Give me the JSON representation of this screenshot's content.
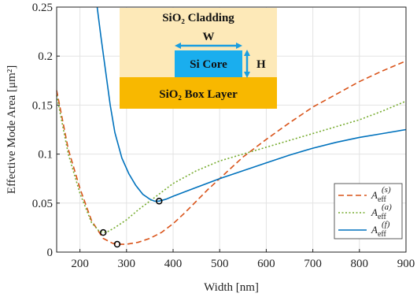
{
  "chart_data": {
    "type": "line",
    "xlabel": "Width [nm]",
    "ylabel": "Effective Mode Area [μm²]",
    "xlim": [
      150,
      900
    ],
    "ylim": [
      0,
      0.25
    ],
    "xticks": [
      "200",
      "300",
      "400",
      "500",
      "600",
      "700",
      "800",
      "900"
    ],
    "yticks": [
      "0",
      "0.05",
      "0.1",
      "0.15",
      "0.2",
      "0.25"
    ],
    "grid": true,
    "legend_position": "bottom-right",
    "series": [
      {
        "name": "A_eff^(s)",
        "legend_main": "A",
        "legend_sub": "eff",
        "legend_sup": "(s)",
        "color": "#d95319",
        "style": "dashed",
        "x": [
          150,
          175,
          200,
          225,
          250,
          270,
          280,
          300,
          325,
          350,
          375,
          400,
          425,
          450,
          475,
          500,
          550,
          600,
          650,
          700,
          750,
          800,
          850,
          900
        ],
        "y": [
          0.165,
          0.105,
          0.065,
          0.032,
          0.014,
          0.009,
          0.008,
          0.008,
          0.01,
          0.014,
          0.02,
          0.029,
          0.04,
          0.052,
          0.064,
          0.075,
          0.097,
          0.115,
          0.132,
          0.148,
          0.161,
          0.174,
          0.185,
          0.195
        ]
      },
      {
        "name": "A_eff^(a)",
        "legend_main": "A",
        "legend_sub": "eff",
        "legend_sup": "(a)",
        "color": "#77ac30",
        "style": "dotted",
        "x": [
          150,
          175,
          200,
          225,
          240,
          250,
          260,
          275,
          300,
          325,
          350,
          375,
          400,
          450,
          500,
          550,
          600,
          650,
          700,
          750,
          800,
          850,
          900
        ],
        "y": [
          0.16,
          0.1,
          0.06,
          0.03,
          0.022,
          0.02,
          0.021,
          0.025,
          0.033,
          0.043,
          0.052,
          0.061,
          0.07,
          0.083,
          0.093,
          0.1,
          0.107,
          0.114,
          0.121,
          0.128,
          0.135,
          0.144,
          0.154
        ]
      },
      {
        "name": "A_eff^(f)",
        "legend_main": "A",
        "legend_sub": "eff",
        "legend_sup": "(f)",
        "color": "#0072bd",
        "style": "solid",
        "x": [
          237,
          245,
          255,
          265,
          275,
          290,
          305,
          320,
          335,
          350,
          360,
          370,
          385,
          400,
          450,
          500,
          550,
          600,
          650,
          700,
          750,
          800,
          850,
          900
        ],
        "y": [
          0.25,
          0.22,
          0.185,
          0.15,
          0.122,
          0.096,
          0.08,
          0.068,
          0.059,
          0.054,
          0.052,
          0.052,
          0.054,
          0.057,
          0.066,
          0.075,
          0.083,
          0.091,
          0.099,
          0.106,
          0.112,
          0.117,
          0.121,
          0.125
        ]
      }
    ],
    "markers": [
      {
        "x": 250,
        "y": 0.02
      },
      {
        "x": 280,
        "y": 0.008
      },
      {
        "x": 370,
        "y": 0.052
      }
    ],
    "inset": {
      "cladding_label": "SiO₂ Cladding",
      "core_label": "Si Core",
      "box_label": "SiO₂ Box Layer",
      "width_label": "W",
      "height_label": "H",
      "cladding_color": "#fde9b8",
      "box_color": "#f8b800",
      "core_color": "#1aaeee",
      "arrow_color": "#1a9ee0"
    }
  }
}
